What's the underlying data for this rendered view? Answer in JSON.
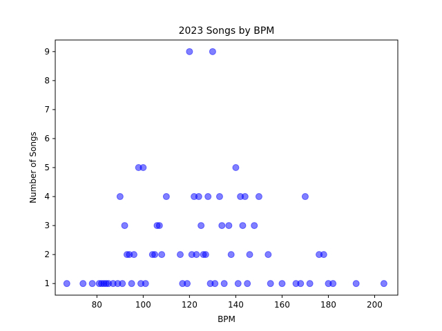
{
  "chart_data": {
    "type": "scatter",
    "title": "2023 Songs by BPM",
    "xlabel": "BPM",
    "ylabel": "Number of Songs",
    "xlim": [
      62,
      210
    ],
    "ylim": [
      0.6,
      9.4
    ],
    "xticks": [
      80,
      100,
      120,
      140,
      160,
      180,
      200
    ],
    "yticks": [
      1,
      2,
      3,
      4,
      5,
      6,
      7,
      8,
      9
    ],
    "grid": false,
    "marker_color": "#0000ff",
    "marker_alpha": 0.5,
    "series": [
      {
        "points": [
          [
            67,
            1
          ],
          [
            74,
            1
          ],
          [
            78,
            1
          ],
          [
            81,
            1
          ],
          [
            82,
            1
          ],
          [
            83,
            1
          ],
          [
            84,
            1
          ],
          [
            85,
            1
          ],
          [
            87,
            1
          ],
          [
            89,
            1
          ],
          [
            91,
            1
          ],
          [
            95,
            1
          ],
          [
            99,
            1
          ],
          [
            101,
            1
          ],
          [
            117,
            1
          ],
          [
            119,
            1
          ],
          [
            129,
            1
          ],
          [
            131,
            1
          ],
          [
            135,
            1
          ],
          [
            141,
            1
          ],
          [
            145,
            1
          ],
          [
            155,
            1
          ],
          [
            160,
            1
          ],
          [
            166,
            1
          ],
          [
            168,
            1
          ],
          [
            172,
            1
          ],
          [
            180,
            1
          ],
          [
            182,
            1
          ],
          [
            192,
            1
          ],
          [
            204,
            1
          ],
          [
            93,
            2
          ],
          [
            94,
            2
          ],
          [
            96,
            2
          ],
          [
            104,
            2
          ],
          [
            105,
            2
          ],
          [
            108,
            2
          ],
          [
            116,
            2
          ],
          [
            121,
            2
          ],
          [
            123,
            2
          ],
          [
            126,
            2
          ],
          [
            127,
            2
          ],
          [
            138,
            2
          ],
          [
            146,
            2
          ],
          [
            154,
            2
          ],
          [
            176,
            2
          ],
          [
            178,
            2
          ],
          [
            92,
            3
          ],
          [
            106,
            3
          ],
          [
            107,
            3
          ],
          [
            125,
            3
          ],
          [
            134,
            3
          ],
          [
            137,
            3
          ],
          [
            143,
            3
          ],
          [
            148,
            3
          ],
          [
            90,
            4
          ],
          [
            110,
            4
          ],
          [
            122,
            4
          ],
          [
            124,
            4
          ],
          [
            128,
            4
          ],
          [
            133,
            4
          ],
          [
            142,
            4
          ],
          [
            144,
            4
          ],
          [
            150,
            4
          ],
          [
            170,
            4
          ],
          [
            98,
            5
          ],
          [
            100,
            5
          ],
          [
            140,
            5
          ],
          [
            120,
            9
          ],
          [
            130,
            9
          ]
        ]
      }
    ]
  }
}
